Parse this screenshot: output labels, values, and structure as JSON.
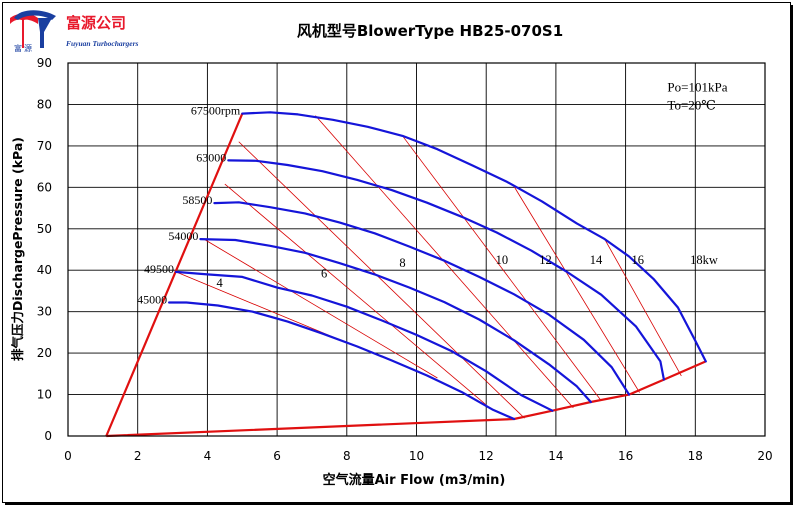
{
  "logo": {
    "company_cn": "富源公司",
    "company_en": "Fuyuan Turbochargers",
    "mark_cn": "富  源",
    "red": "#e8192c",
    "blue": "#1a3fa0"
  },
  "chart_data": {
    "type": "line",
    "title": "风机型号BlowerType HB25-070S1",
    "xlabel": "空气流量Air Flow (m3/min)",
    "ylabel": "排气压力DischargePressure (kPa)",
    "xlim": [
      0,
      20
    ],
    "ylim": [
      0,
      90
    ],
    "xticks": [
      0,
      2,
      4,
      6,
      8,
      10,
      12,
      14,
      16,
      18,
      20
    ],
    "yticks": [
      0,
      10,
      20,
      30,
      40,
      50,
      60,
      70,
      80,
      90
    ],
    "grid": true,
    "conditions": [
      "Po=101kPa",
      "To=20℃"
    ],
    "speed_curves": [
      {
        "label": "45000",
        "points": [
          [
            2.9,
            32.2
          ],
          [
            3.4,
            32.2
          ],
          [
            4.3,
            31.5
          ],
          [
            5.3,
            30.0
          ],
          [
            6.3,
            27.6
          ],
          [
            7.3,
            24.7
          ],
          [
            8.3,
            21.6
          ],
          [
            9.3,
            18.2
          ],
          [
            10.3,
            14.6
          ],
          [
            11.3,
            10.6
          ],
          [
            12.2,
            6.3
          ],
          [
            12.8,
            4.1
          ]
        ]
      },
      {
        "label": "49500",
        "points": [
          [
            3.1,
            39.6
          ],
          [
            4.0,
            39.0
          ],
          [
            5.0,
            38.4
          ],
          [
            6.0,
            35.8
          ],
          [
            7.0,
            33.9
          ],
          [
            8.0,
            31.2
          ],
          [
            9.0,
            27.9
          ],
          [
            10.0,
            24.4
          ],
          [
            11.0,
            20.5
          ],
          [
            12.0,
            15.6
          ],
          [
            13.0,
            9.9
          ],
          [
            13.9,
            6.1
          ]
        ]
      },
      {
        "label": "54000",
        "points": [
          [
            3.8,
            47.5
          ],
          [
            4.8,
            47.3
          ],
          [
            5.8,
            45.9
          ],
          [
            6.8,
            44.2
          ],
          [
            7.8,
            41.7
          ],
          [
            8.8,
            39.0
          ],
          [
            9.8,
            35.8
          ],
          [
            10.8,
            32.3
          ],
          [
            11.8,
            28.1
          ],
          [
            12.8,
            23.1
          ],
          [
            13.8,
            17.3
          ],
          [
            14.6,
            12.0
          ],
          [
            15.0,
            8.2
          ]
        ]
      },
      {
        "label": "58500",
        "points": [
          [
            4.2,
            56.2
          ],
          [
            4.9,
            56.4
          ],
          [
            5.8,
            55.2
          ],
          [
            6.8,
            53.7
          ],
          [
            7.8,
            51.5
          ],
          [
            8.8,
            48.9
          ],
          [
            9.8,
            45.7
          ],
          [
            10.8,
            42.3
          ],
          [
            11.8,
            38.4
          ],
          [
            12.8,
            34.2
          ],
          [
            13.8,
            29.3
          ],
          [
            14.8,
            23.2
          ],
          [
            15.6,
            16.6
          ],
          [
            16.1,
            10.0
          ]
        ]
      },
      {
        "label": "63000",
        "points": [
          [
            4.6,
            66.5
          ],
          [
            5.4,
            66.4
          ],
          [
            6.3,
            65.4
          ],
          [
            7.3,
            63.9
          ],
          [
            8.3,
            61.8
          ],
          [
            9.3,
            59.3
          ],
          [
            10.3,
            56.3
          ],
          [
            11.3,
            52.9
          ],
          [
            12.3,
            49.1
          ],
          [
            13.3,
            44.7
          ],
          [
            14.3,
            39.7
          ],
          [
            15.3,
            34.1
          ],
          [
            16.3,
            26.4
          ],
          [
            17.0,
            18.0
          ],
          [
            17.1,
            13.6
          ]
        ]
      },
      {
        "label": "67500rpm",
        "points": [
          [
            5.0,
            77.8
          ],
          [
            5.8,
            78.1
          ],
          [
            6.6,
            77.6
          ],
          [
            7.6,
            76.3
          ],
          [
            8.6,
            74.6
          ],
          [
            9.6,
            72.4
          ],
          [
            10.6,
            69.2
          ],
          [
            11.6,
            65.3
          ],
          [
            12.6,
            61.3
          ],
          [
            13.6,
            56.6
          ],
          [
            14.6,
            51.3
          ],
          [
            15.4,
            47.5
          ],
          [
            16.1,
            43.3
          ],
          [
            16.8,
            37.9
          ],
          [
            17.5,
            31.0
          ],
          [
            18.0,
            23.0
          ],
          [
            18.3,
            18.0
          ]
        ]
      }
    ],
    "power_lines": [
      {
        "label": "4",
        "from": [
          3.1,
          39.6
        ],
        "to": [
          8.2,
          21.8
        ]
      },
      {
        "label": "6",
        "from": [
          3.9,
          47.5
        ],
        "to": [
          10.6,
          14.0
        ]
      },
      {
        "label": "8",
        "from": [
          4.5,
          60.8
        ],
        "to": [
          12.0,
          7.5
        ]
      },
      {
        "label": "10",
        "from": [
          4.9,
          71.0
        ],
        "to": [
          13.1,
          4.3
        ]
      },
      {
        "label": "12",
        "from": [
          7.1,
          77.3
        ],
        "to": [
          14.5,
          6.8
        ]
      },
      {
        "label": "14",
        "from": [
          9.6,
          72.4
        ],
        "to": [
          15.3,
          8.5
        ]
      },
      {
        "label": "16",
        "from": [
          12.8,
          60.2
        ],
        "to": [
          16.4,
          10.5
        ]
      },
      {
        "label": "18kw",
        "from": [
          15.4,
          47.5
        ],
        "to": [
          17.6,
          14.5
        ]
      }
    ],
    "power_labels": [
      {
        "text": "4",
        "at": [
          4.35,
          36.0
        ]
      },
      {
        "text": "6",
        "at": [
          7.35,
          38.2
        ]
      },
      {
        "text": "8",
        "at": [
          9.6,
          40.8
        ]
      },
      {
        "text": "10",
        "at": [
          12.45,
          41.5
        ]
      },
      {
        "text": "12",
        "at": [
          13.7,
          41.5
        ]
      },
      {
        "text": "14",
        "at": [
          15.15,
          41.5
        ]
      },
      {
        "text": "16",
        "at": [
          16.35,
          41.5
        ]
      },
      {
        "text": "18kw",
        "at": [
          18.25,
          41.5
        ]
      }
    ],
    "surge_line": [
      [
        1.1,
        0.0
      ],
      [
        5.0,
        77.8
      ]
    ],
    "bottom_limit": [
      [
        1.1,
        0.0
      ],
      [
        12.8,
        4.1
      ],
      [
        13.9,
        6.1
      ],
      [
        15.0,
        8.2
      ],
      [
        16.1,
        10.0
      ],
      [
        17.1,
        13.6
      ],
      [
        18.3,
        18.0
      ]
    ],
    "colors": {
      "speed": "#1515d9",
      "boundary": "#e01010",
      "power": "#d80000"
    }
  }
}
